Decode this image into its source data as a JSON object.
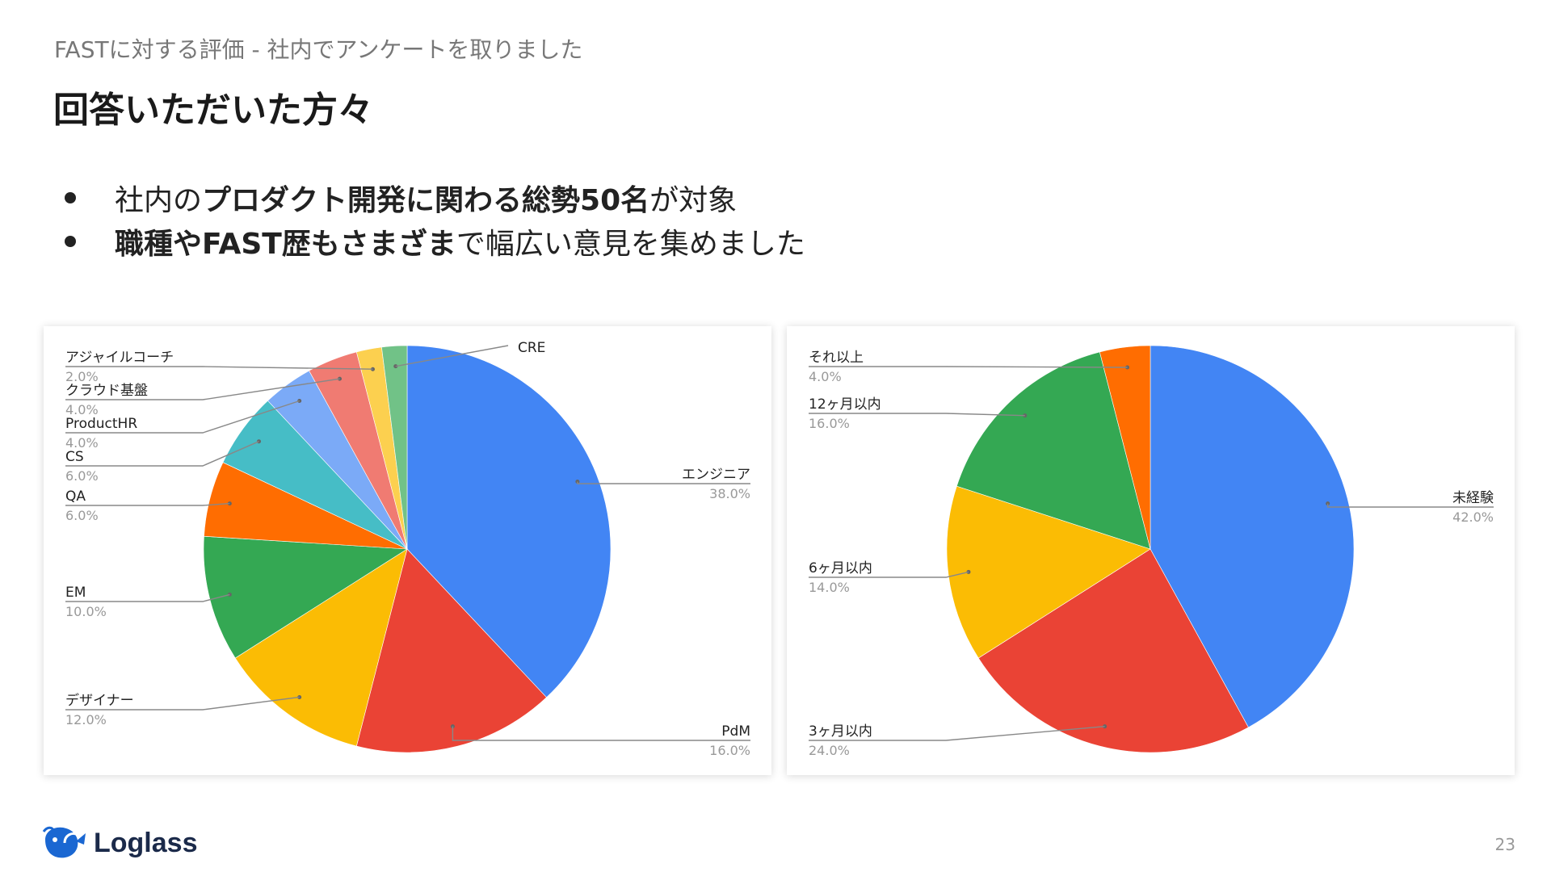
{
  "header": {
    "subtitle": "FASTに対する評価 - 社内でアンケートを取りました",
    "title": "回答いただいた方々"
  },
  "bullets": [
    [
      {
        "text": "社内の",
        "bold": false
      },
      {
        "text": "プロダクト開発に関わる総勢50名",
        "bold": true
      },
      {
        "text": "が対象",
        "bold": false
      }
    ],
    [
      {
        "text": "職種やFAST歴もさまざま",
        "bold": true
      },
      {
        "text": "で幅広い意見を集めました",
        "bold": false
      }
    ]
  ],
  "chart_data": [
    {
      "type": "pie",
      "title": "",
      "slices": [
        {
          "label": "エンジニア",
          "value": 38.0,
          "pct": "38.0%",
          "color": "#4285f4"
        },
        {
          "label": "PdM",
          "value": 16.0,
          "pct": "16.0%",
          "color": "#ea4335"
        },
        {
          "label": "デザイナー",
          "value": 12.0,
          "pct": "12.0%",
          "color": "#fbbc04"
        },
        {
          "label": "EM",
          "value": 10.0,
          "pct": "10.0%",
          "color": "#34a853"
        },
        {
          "label": "QA",
          "value": 6.0,
          "pct": "6.0%",
          "color": "#ff6d01"
        },
        {
          "label": "CS",
          "value": 6.0,
          "pct": "6.0%",
          "color": "#46bdc6"
        },
        {
          "label": "ProductHR",
          "value": 4.0,
          "pct": "4.0%",
          "color": "#7baaf7"
        },
        {
          "label": "クラウド基盤",
          "value": 4.0,
          "pct": "4.0%",
          "color": "#f07b72"
        },
        {
          "label": "アジャイルコーチ",
          "value": 2.0,
          "pct": "2.0%",
          "color": "#fcd04f"
        },
        {
          "label": "CRE",
          "value": 2.0,
          "pct": "",
          "color": "#71c287"
        }
      ]
    },
    {
      "type": "pie",
      "title": "",
      "slices": [
        {
          "label": "未経験",
          "value": 42.0,
          "pct": "42.0%",
          "color": "#4285f4"
        },
        {
          "label": "3ヶ月以内",
          "value": 24.0,
          "pct": "24.0%",
          "color": "#ea4335"
        },
        {
          "label": "6ヶ月以内",
          "value": 14.0,
          "pct": "14.0%",
          "color": "#fbbc04"
        },
        {
          "label": "12ヶ月以内",
          "value": 16.0,
          "pct": "16.0%",
          "color": "#34a853"
        },
        {
          "label": "それ以上",
          "value": 4.0,
          "pct": "4.0%",
          "color": "#ff6d01"
        }
      ]
    }
  ],
  "footer": {
    "logo_text": "Loglass",
    "page_number": "23"
  }
}
